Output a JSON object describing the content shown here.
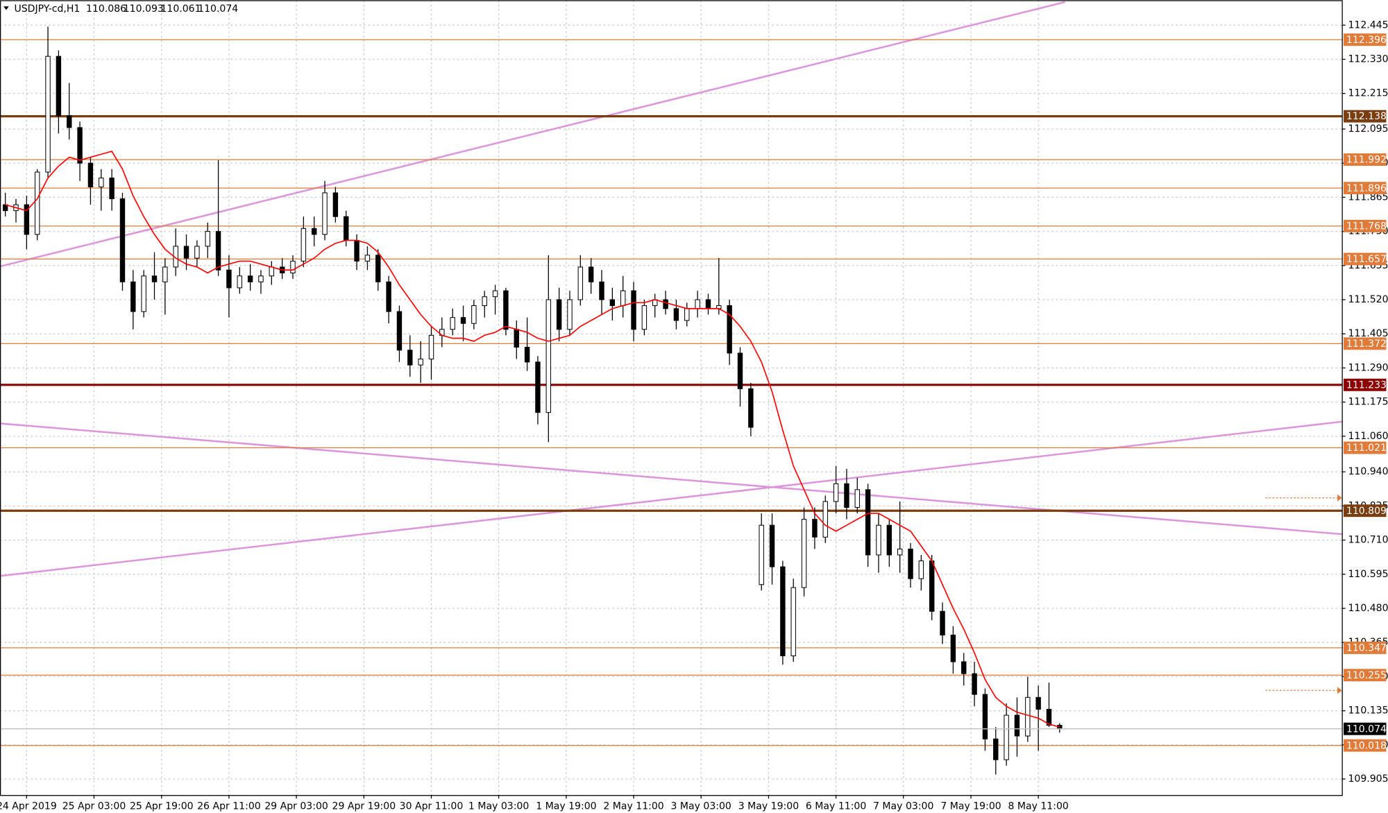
{
  "chart_data": {
    "type": "candlestick",
    "title": "USDJPY-cd,H1",
    "up_color": "#ffffff",
    "down_color": "#000000",
    "grid": true,
    "xlim": [
      -0.5,
      125.5
    ],
    "ylim": [
      109.851,
      112.529
    ],
    "xticks": [
      {
        "value": 2,
        "label": "24 Apr 2019"
      },
      {
        "value": 8.33,
        "label": "25 Apr 03:00"
      },
      {
        "value": 14.67,
        "label": "25 Apr 19:00"
      },
      {
        "value": 21,
        "label": "26 Apr 11:00"
      },
      {
        "value": 27.33,
        "label": "29 Apr 03:00"
      },
      {
        "value": 33.67,
        "label": "29 Apr 19:00"
      },
      {
        "value": 40,
        "label": "30 Apr 11:00"
      },
      {
        "value": 46.33,
        "label": "1 May 03:00"
      },
      {
        "value": 52.67,
        "label": "1 May 19:00"
      },
      {
        "value": 59,
        "label": "2 May 11:00"
      },
      {
        "value": 65.33,
        "label": "3 May 03:00"
      },
      {
        "value": 71.67,
        "label": "3 May 19:00"
      },
      {
        "value": 78,
        "label": "6 May 11:00"
      },
      {
        "value": 84.33,
        "label": "7 May 03:00"
      },
      {
        "value": 90.67,
        "label": "7 May 19:00"
      },
      {
        "value": 97,
        "label": "8 May 11:00"
      }
    ],
    "yticks": [
      112.445,
      {
        "value": 112.33,
        "label": "112.330"
      },
      112.215,
      112.095,
      {
        "value": 111.98,
        "label": "111.980"
      },
      111.865,
      {
        "value": 111.75,
        "label": "111.750"
      },
      111.635,
      {
        "value": 111.52,
        "label": "111.520"
      },
      111.405,
      {
        "value": 111.29,
        "label": "111.290"
      },
      111.175,
      {
        "value": 111.06,
        "label": "111.060"
      },
      {
        "value": 110.94,
        "label": "110.940"
      },
      110.825,
      {
        "value": 110.71,
        "label": "110.710"
      },
      110.595,
      {
        "value": 110.48,
        "label": "110.480"
      },
      110.365,
      {
        "value": 110.25,
        "label": "110.250"
      },
      110.135,
      {
        "value": 110.02,
        "label": "110.020"
      },
      109.905
    ],
    "ohlc": {
      "open": [
        111.84,
        111.82,
        111.84,
        111.74,
        111.95,
        112.34,
        112.14,
        112.1,
        111.98,
        111.9,
        111.93,
        111.86,
        111.58,
        111.48,
        111.6,
        111.58,
        111.63,
        111.7,
        111.66,
        111.7,
        111.75,
        111.62,
        111.56,
        111.6,
        111.58,
        111.6,
        111.63,
        111.61,
        111.65,
        111.76,
        111.74,
        111.88,
        111.8,
        111.72,
        111.65,
        111.67,
        111.58,
        111.48,
        111.35,
        111.3,
        111.32,
        111.4,
        111.42,
        111.46,
        111.44,
        111.5,
        111.53,
        111.55,
        111.42,
        111.36,
        111.31,
        111.14,
        111.52,
        111.42,
        111.52,
        111.63,
        111.58,
        111.52,
        111.5,
        111.55,
        111.42,
        111.5,
        111.52,
        111.49,
        111.45,
        111.49,
        111.52,
        111.49,
        111.5,
        111.34,
        111.22,
        110.56,
        110.76,
        110.62,
        110.32,
        110.55,
        110.78,
        110.72,
        110.84,
        110.9,
        110.82,
        110.88,
        110.66,
        110.76,
        110.66,
        110.68,
        110.58,
        110.64,
        110.47,
        110.39,
        110.3,
        110.26,
        110.19,
        110.04,
        109.97,
        110.12,
        110.05,
        110.18,
        110.14,
        110.086
      ],
      "high": [
        111.88,
        111.86,
        111.87,
        111.96,
        112.44,
        112.36,
        112.25,
        112.12,
        112.0,
        111.96,
        111.96,
        111.88,
        111.62,
        111.62,
        111.68,
        111.66,
        111.76,
        111.74,
        111.72,
        111.78,
        111.99,
        111.67,
        111.63,
        111.64,
        111.62,
        111.65,
        111.66,
        111.67,
        111.8,
        111.8,
        111.92,
        111.9,
        111.82,
        111.74,
        111.7,
        111.69,
        111.6,
        111.5,
        111.4,
        111.38,
        111.43,
        111.46,
        111.49,
        111.5,
        111.52,
        111.55,
        111.57,
        111.56,
        111.45,
        111.46,
        111.33,
        111.67,
        111.56,
        111.55,
        111.67,
        111.66,
        111.62,
        111.56,
        111.6,
        111.58,
        111.52,
        111.54,
        111.55,
        111.52,
        111.51,
        111.55,
        111.54,
        111.66,
        111.52,
        111.36,
        111.24,
        110.8,
        110.8,
        110.64,
        110.58,
        110.82,
        110.82,
        110.86,
        110.96,
        110.95,
        110.92,
        110.9,
        110.8,
        110.78,
        110.84,
        110.7,
        110.66,
        110.66,
        110.5,
        110.42,
        110.33,
        110.3,
        110.21,
        110.08,
        110.16,
        110.18,
        110.25,
        110.22,
        110.23,
        110.093
      ],
      "low": [
        111.8,
        111.78,
        111.69,
        111.72,
        111.93,
        112.08,
        112.06,
        111.92,
        111.84,
        111.82,
        111.82,
        111.55,
        111.42,
        111.46,
        111.52,
        111.47,
        111.6,
        111.62,
        111.63,
        111.66,
        111.6,
        111.46,
        111.54,
        111.55,
        111.54,
        111.57,
        111.59,
        111.59,
        111.63,
        111.7,
        111.72,
        111.78,
        111.7,
        111.62,
        111.62,
        111.55,
        111.44,
        111.31,
        111.26,
        111.24,
        111.25,
        111.36,
        111.4,
        111.38,
        111.42,
        111.46,
        111.47,
        111.4,
        111.32,
        111.28,
        111.1,
        111.04,
        111.38,
        111.4,
        111.5,
        111.54,
        111.47,
        111.45,
        111.46,
        111.38,
        111.4,
        111.46,
        111.47,
        111.42,
        111.43,
        111.46,
        111.47,
        111.47,
        111.3,
        111.16,
        111.06,
        110.54,
        110.56,
        110.29,
        110.3,
        110.52,
        110.68,
        110.7,
        110.8,
        110.78,
        110.8,
        110.62,
        110.6,
        110.62,
        110.6,
        110.55,
        110.54,
        110.44,
        110.36,
        110.26,
        110.22,
        110.15,
        110.0,
        109.92,
        109.95,
        109.98,
        110.03,
        110.0,
        110.08,
        110.061
      ],
      "close": [
        111.82,
        111.84,
        111.74,
        111.95,
        112.34,
        112.14,
        112.1,
        111.98,
        111.9,
        111.93,
        111.86,
        111.58,
        111.48,
        111.6,
        111.58,
        111.63,
        111.7,
        111.66,
        111.7,
        111.75,
        111.62,
        111.56,
        111.6,
        111.58,
        111.6,
        111.63,
        111.61,
        111.65,
        111.76,
        111.74,
        111.88,
        111.8,
        111.72,
        111.65,
        111.67,
        111.58,
        111.48,
        111.35,
        111.3,
        111.32,
        111.4,
        111.42,
        111.46,
        111.44,
        111.5,
        111.53,
        111.55,
        111.42,
        111.36,
        111.31,
        111.14,
        111.52,
        111.42,
        111.52,
        111.63,
        111.58,
        111.52,
        111.5,
        111.55,
        111.42,
        111.5,
        111.52,
        111.49,
        111.45,
        111.49,
        111.52,
        111.49,
        111.5,
        111.34,
        111.22,
        111.09,
        110.76,
        110.62,
        110.32,
        110.55,
        110.78,
        110.72,
        110.84,
        110.9,
        110.82,
        110.88,
        110.66,
        110.76,
        110.66,
        110.68,
        110.58,
        110.64,
        110.47,
        110.39,
        110.3,
        110.26,
        110.19,
        110.04,
        109.97,
        110.12,
        110.05,
        110.18,
        110.14,
        110.086,
        110.074
      ]
    },
    "ma": {
      "color": "#ff0000",
      "values": [
        111.84,
        111.83,
        111.82,
        111.86,
        111.93,
        111.97,
        112.0,
        111.99,
        112.0,
        112.01,
        112.02,
        111.96,
        111.87,
        111.8,
        111.74,
        111.69,
        111.66,
        111.64,
        111.63,
        111.61,
        111.63,
        111.64,
        111.65,
        111.65,
        111.64,
        111.63,
        111.62,
        111.62,
        111.64,
        111.66,
        111.69,
        111.71,
        111.72,
        111.72,
        111.71,
        111.68,
        111.63,
        111.57,
        111.52,
        111.47,
        111.43,
        111.4,
        111.39,
        111.39,
        111.38,
        111.4,
        111.41,
        111.43,
        111.42,
        111.41,
        111.39,
        111.38,
        111.39,
        111.4,
        111.43,
        111.45,
        111.47,
        111.49,
        111.5,
        111.51,
        111.51,
        111.52,
        111.51,
        111.5,
        111.49,
        111.49,
        111.49,
        111.49,
        111.47,
        111.43,
        111.38,
        111.31,
        111.21,
        111.08,
        110.96,
        110.88,
        110.8,
        110.76,
        110.74,
        110.76,
        110.78,
        110.8,
        110.8,
        110.78,
        110.76,
        110.74,
        110.69,
        110.64,
        110.56,
        110.48,
        110.41,
        110.33,
        110.24,
        110.18,
        110.15,
        110.13,
        110.12,
        110.11,
        110.09,
        110.08
      ]
    },
    "levels": [
      {
        "value": 112.396,
        "color": "#e07b39",
        "bold": false
      },
      {
        "value": 112.138,
        "color": "#7a3d10",
        "bold": true
      },
      {
        "value": 111.992,
        "color": "#e07b39",
        "bold": false
      },
      {
        "value": 111.896,
        "color": "#e07b39",
        "bold": false
      },
      {
        "value": 111.768,
        "color": "#e07b39",
        "bold": false
      },
      {
        "value": 111.657,
        "color": "#e07b39",
        "bold": false
      },
      {
        "value": 111.372,
        "color": "#e07b39",
        "bold": false
      },
      {
        "value": 111.233,
        "color": "#8b0000",
        "bold": true
      },
      {
        "value": 111.021,
        "color": "#e07b39",
        "bold": false
      },
      {
        "value": 110.809,
        "color": "#7a3d10",
        "bold": true
      },
      {
        "value": 110.347,
        "color": "#e07b39",
        "bold": false
      },
      {
        "value": 110.255,
        "color": "#e07b39",
        "bold": false
      },
      {
        "value": 110.018,
        "color": "#e07b39",
        "bold": false
      }
    ],
    "trendlines": [
      {
        "color": "#dc96dc",
        "x": [
          -0.5,
          99.5
        ],
        "y": [
          111.632,
          112.523
        ]
      },
      {
        "color": "#dc96dc",
        "x": [
          -0.5,
          125.5
        ],
        "y": [
          111.103,
          110.73
        ]
      },
      {
        "color": "#dc96dc",
        "x": [
          -0.5,
          125.5
        ],
        "y": [
          110.589,
          111.109
        ]
      }
    ]
  }
}
